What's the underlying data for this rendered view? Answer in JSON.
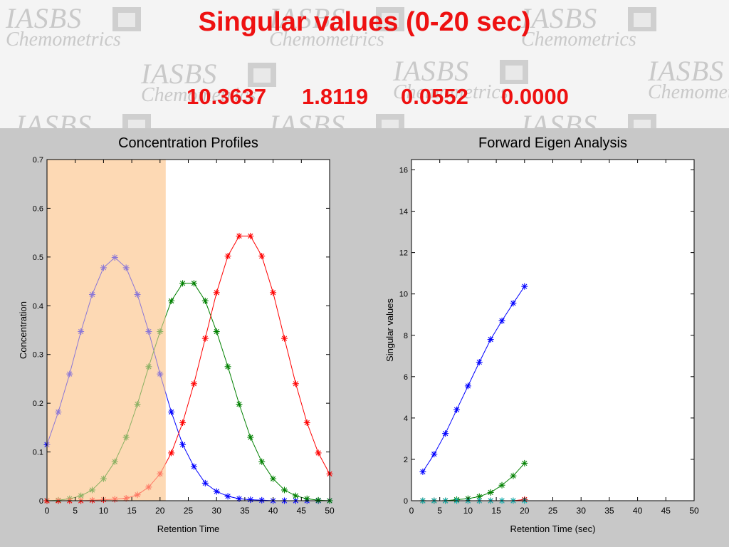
{
  "header": {
    "title": "Singular values  (0-20 sec)",
    "singular_values": [
      "10.3637",
      "1.8119",
      "0.0552",
      "0.0000"
    ],
    "watermark": {
      "line1": "IASBS",
      "line2": "Chemometrics"
    }
  },
  "colors": {
    "title": "#ee1111",
    "highlight": "#fdd9b4",
    "figure_bg": "#c8c8c8"
  },
  "chart_data": [
    {
      "type": "line",
      "title": "Concentration Profiles",
      "xlabel": "Retention Time",
      "ylabel": "Concentration",
      "xlim": [
        0,
        50
      ],
      "ylim": [
        0,
        0.7
      ],
      "xticks": [
        0,
        5,
        10,
        15,
        20,
        25,
        30,
        35,
        40,
        45,
        50
      ],
      "yticks": [
        0,
        0.1,
        0.2,
        0.3,
        0.4,
        0.5,
        0.6,
        0.7
      ],
      "ytick_labels": [
        "0",
        "0.1",
        "0.2",
        "0.3",
        "0.4",
        "0.5",
        "0.6",
        "0.7"
      ],
      "highlight_range": [
        0,
        21
      ],
      "marker": "*",
      "series": [
        {
          "color": "#0000ff",
          "points": [
            [
              0,
              0.115
            ],
            [
              2,
              0.182
            ],
            [
              4,
              0.26
            ],
            [
              6,
              0.347
            ],
            [
              8,
              0.423
            ],
            [
              10,
              0.478
            ],
            [
              12,
              0.499
            ],
            [
              14,
              0.478
            ],
            [
              16,
              0.423
            ],
            [
              18,
              0.347
            ],
            [
              20,
              0.26
            ],
            [
              22,
              0.182
            ],
            [
              24,
              0.115
            ],
            [
              26,
              0.07
            ],
            [
              28,
              0.036
            ],
            [
              30,
              0.019
            ],
            [
              32,
              0.009
            ],
            [
              34,
              0.004
            ],
            [
              36,
              0.002
            ],
            [
              38,
              0.001
            ],
            [
              40,
              0.0
            ],
            [
              42,
              0.0
            ],
            [
              44,
              0.0
            ],
            [
              46,
              0.0
            ],
            [
              48,
              0.0
            ],
            [
              50,
              0.0
            ]
          ]
        },
        {
          "color": "#008000",
          "points": [
            [
              0,
              0.0
            ],
            [
              2,
              0.001
            ],
            [
              4,
              0.004
            ],
            [
              6,
              0.01
            ],
            [
              8,
              0.022
            ],
            [
              10,
              0.045
            ],
            [
              12,
              0.08
            ],
            [
              14,
              0.13
            ],
            [
              16,
              0.198
            ],
            [
              18,
              0.275
            ],
            [
              20,
              0.347
            ],
            [
              22,
              0.41
            ],
            [
              24,
              0.446
            ],
            [
              26,
              0.446
            ],
            [
              28,
              0.41
            ],
            [
              30,
              0.347
            ],
            [
              32,
              0.275
            ],
            [
              34,
              0.198
            ],
            [
              36,
              0.13
            ],
            [
              38,
              0.08
            ],
            [
              40,
              0.045
            ],
            [
              42,
              0.022
            ],
            [
              44,
              0.01
            ],
            [
              46,
              0.004
            ],
            [
              48,
              0.001
            ],
            [
              50,
              0.0
            ]
          ]
        },
        {
          "color": "#ff0000",
          "points": [
            [
              0,
              0.0
            ],
            [
              2,
              0.0
            ],
            [
              4,
              0.0
            ],
            [
              6,
              0.0
            ],
            [
              8,
              0.001
            ],
            [
              10,
              0.002
            ],
            [
              12,
              0.003
            ],
            [
              14,
              0.005
            ],
            [
              16,
              0.012
            ],
            [
              18,
              0.028
            ],
            [
              20,
              0.055
            ],
            [
              22,
              0.098
            ],
            [
              24,
              0.16
            ],
            [
              26,
              0.24
            ],
            [
              28,
              0.333
            ],
            [
              30,
              0.427
            ],
            [
              32,
              0.502
            ],
            [
              34,
              0.543
            ],
            [
              36,
              0.543
            ],
            [
              38,
              0.502
            ],
            [
              40,
              0.427
            ],
            [
              42,
              0.333
            ],
            [
              44,
              0.24
            ],
            [
              46,
              0.16
            ],
            [
              48,
              0.098
            ],
            [
              50,
              0.055
            ]
          ]
        }
      ]
    },
    {
      "type": "line",
      "title": "Forward Eigen Analysis",
      "xlabel": "Retention Time (sec)",
      "ylabel": "Singular values",
      "xlim": [
        0,
        50
      ],
      "ylim": [
        0,
        16.5
      ],
      "xticks": [
        0,
        5,
        10,
        15,
        20,
        25,
        30,
        35,
        40,
        45,
        50
      ],
      "yticks": [
        0,
        2,
        4,
        6,
        8,
        10,
        12,
        14,
        16
      ],
      "ytick_labels": [
        "0",
        "2",
        "4",
        "6",
        "8",
        "10",
        "12",
        "14",
        "16"
      ],
      "marker": "*",
      "series": [
        {
          "color": "#0000ff",
          "points": [
            [
              2,
              1.4
            ],
            [
              4,
              2.25
            ],
            [
              6,
              3.25
            ],
            [
              8,
              4.4
            ],
            [
              10,
              5.55
            ],
            [
              12,
              6.7
            ],
            [
              14,
              7.8
            ],
            [
              16,
              8.7
            ],
            [
              18,
              9.55
            ],
            [
              20,
              10.3637
            ]
          ]
        },
        {
          "color": "#008000",
          "points": [
            [
              2,
              0.0
            ],
            [
              4,
              0.0
            ],
            [
              6,
              0.0
            ],
            [
              8,
              0.05
            ],
            [
              10,
              0.1
            ],
            [
              12,
              0.2
            ],
            [
              14,
              0.4
            ],
            [
              16,
              0.75
            ],
            [
              18,
              1.2
            ],
            [
              20,
              1.8119
            ]
          ]
        },
        {
          "color": "#ff0000",
          "points": [
            [
              2,
              0.0
            ],
            [
              4,
              0.0
            ],
            [
              6,
              0.0
            ],
            [
              8,
              0.0
            ],
            [
              10,
              0.0
            ],
            [
              12,
              0.0
            ],
            [
              14,
              0.0
            ],
            [
              16,
              0.0
            ],
            [
              18,
              0.0
            ],
            [
              20,
              0.0552
            ]
          ]
        },
        {
          "color": "#00bfbf",
          "points": [
            [
              2,
              0.0
            ],
            [
              4,
              0.0
            ],
            [
              6,
              0.0
            ],
            [
              8,
              0.0
            ],
            [
              10,
              0.0
            ],
            [
              12,
              0.0
            ],
            [
              14,
              0.0
            ],
            [
              16,
              0.0
            ],
            [
              18,
              0.0
            ],
            [
              20,
              0.0
            ]
          ]
        }
      ]
    }
  ]
}
